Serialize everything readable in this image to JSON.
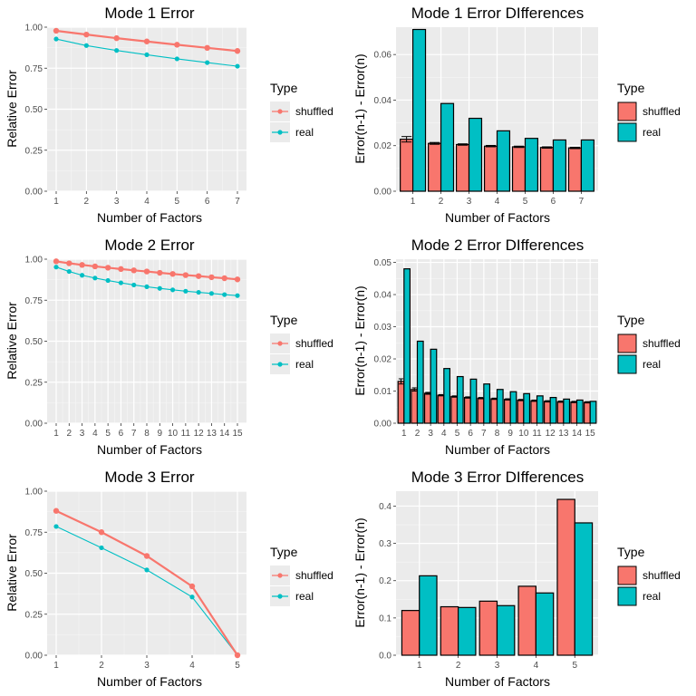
{
  "legend": {
    "title": "Type",
    "entries": [
      {
        "name": "shuffled",
        "color": "#F8766D"
      },
      {
        "name": "real",
        "color": "#00BFC4"
      }
    ]
  },
  "chart_data": [
    {
      "id": "mode1-error",
      "type": "line",
      "title": "Mode 1 Error",
      "xlabel": "Number of Factors",
      "ylabel": "Relative Error",
      "x": [
        1,
        2,
        3,
        4,
        5,
        6,
        7
      ],
      "ylim": [
        0,
        1.0
      ],
      "yticks": [
        "0.00",
        "0.25",
        "0.50",
        "0.75",
        "1.00"
      ],
      "series": [
        {
          "name": "shuffled",
          "values": [
            0.978,
            0.955,
            0.933,
            0.913,
            0.893,
            0.874,
            0.855
          ]
        },
        {
          "name": "real",
          "values": [
            0.928,
            0.888,
            0.858,
            0.832,
            0.807,
            0.784,
            0.762
          ]
        }
      ]
    },
    {
      "id": "mode1-diff",
      "type": "bar",
      "title": "Mode 1 Error DIfferences",
      "xlabel": "Number of Factors",
      "ylabel": "Error(n-1) - Error(n)",
      "categories": [
        "1",
        "2",
        "3",
        "4",
        "5",
        "6",
        "7"
      ],
      "ylim": [
        0,
        0.072
      ],
      "yticks": [
        "0.00",
        "0.02",
        "0.04",
        "0.06"
      ],
      "series": [
        {
          "name": "shuffled",
          "values": [
            0.0228,
            0.021,
            0.0205,
            0.0198,
            0.0195,
            0.0192,
            0.019
          ],
          "errors": [
            0.0012,
            0.0004,
            0.0003,
            0.0003,
            0.0003,
            0.0003,
            0.0003
          ]
        },
        {
          "name": "real",
          "values": [
            0.071,
            0.0385,
            0.032,
            0.0265,
            0.0232,
            0.0225,
            0.0225
          ]
        }
      ]
    },
    {
      "id": "mode2-error",
      "type": "line",
      "title": "Mode 2 Error",
      "xlabel": "Number of Factors",
      "ylabel": "Relative Error",
      "x": [
        1,
        2,
        3,
        4,
        5,
        6,
        7,
        8,
        9,
        10,
        11,
        12,
        13,
        14,
        15
      ],
      "ylim": [
        0,
        1.0
      ],
      "yticks": [
        "0.00",
        "0.25",
        "0.50",
        "0.75",
        "1.00"
      ],
      "series": [
        {
          "name": "shuffled",
          "values": [
            0.987,
            0.975,
            0.965,
            0.956,
            0.948,
            0.94,
            0.932,
            0.925,
            0.917,
            0.91,
            0.903,
            0.897,
            0.89,
            0.884,
            0.877
          ]
        },
        {
          "name": "real",
          "values": [
            0.952,
            0.925,
            0.902,
            0.885,
            0.87,
            0.856,
            0.843,
            0.832,
            0.822,
            0.813,
            0.805,
            0.798,
            0.791,
            0.784,
            0.778
          ]
        }
      ]
    },
    {
      "id": "mode2-diff",
      "type": "bar",
      "title": "Mode 2 Error DIfferences",
      "xlabel": "Number of Factors",
      "ylabel": "Error(n-1) - Error(n)",
      "categories": [
        "1",
        "2",
        "3",
        "4",
        "5",
        "6",
        "7",
        "8",
        "9",
        "10",
        "11",
        "12",
        "13",
        "14",
        "15"
      ],
      "ylim": [
        0,
        0.051
      ],
      "yticks": [
        "0.00",
        "0.01",
        "0.02",
        "0.03",
        "0.04",
        "0.05"
      ],
      "series": [
        {
          "name": "shuffled",
          "values": [
            0.013,
            0.0105,
            0.0093,
            0.0087,
            0.0083,
            0.008,
            0.0078,
            0.0076,
            0.0074,
            0.0072,
            0.007,
            0.0068,
            0.0067,
            0.0066,
            0.0065
          ],
          "errors": [
            0.0008,
            0.0005,
            0.0003,
            0.0002,
            0.0002,
            0.0002,
            0.0002,
            0.0002,
            0.0002,
            0.0002,
            0.0002,
            0.0002,
            0.0002,
            0.0002,
            0.0002
          ]
        },
        {
          "name": "real",
          "values": [
            0.048,
            0.0255,
            0.023,
            0.017,
            0.0145,
            0.0137,
            0.0122,
            0.0105,
            0.0098,
            0.0092,
            0.0085,
            0.008,
            0.0075,
            0.0072,
            0.0068
          ]
        }
      ]
    },
    {
      "id": "mode3-error",
      "type": "line",
      "title": "Mode 3 Error",
      "xlabel": "Number of Factors",
      "ylabel": "Relative Error",
      "x": [
        1,
        2,
        3,
        4,
        5
      ],
      "ylim": [
        0,
        1.0
      ],
      "yticks": [
        "0.00",
        "0.25",
        "0.50",
        "0.75",
        "1.00"
      ],
      "series": [
        {
          "name": "shuffled",
          "values": [
            0.88,
            0.75,
            0.605,
            0.42,
            0.0
          ]
        },
        {
          "name": "real",
          "values": [
            0.785,
            0.655,
            0.52,
            0.355,
            0.0
          ]
        }
      ]
    },
    {
      "id": "mode3-diff",
      "type": "bar",
      "title": "Mode 3 Error DIfferences",
      "xlabel": "Number of Factors",
      "ylabel": "Error(n-1) - Error(n)",
      "categories": [
        "1",
        "2",
        "3",
        "4",
        "5"
      ],
      "ylim": [
        0,
        0.44
      ],
      "yticks": [
        "0.0",
        "0.1",
        "0.2",
        "0.3",
        "0.4"
      ],
      "series": [
        {
          "name": "shuffled",
          "values": [
            0.12,
            0.13,
            0.145,
            0.185,
            0.418
          ]
        },
        {
          "name": "real",
          "values": [
            0.213,
            0.128,
            0.133,
            0.167,
            0.355
          ]
        }
      ]
    }
  ]
}
